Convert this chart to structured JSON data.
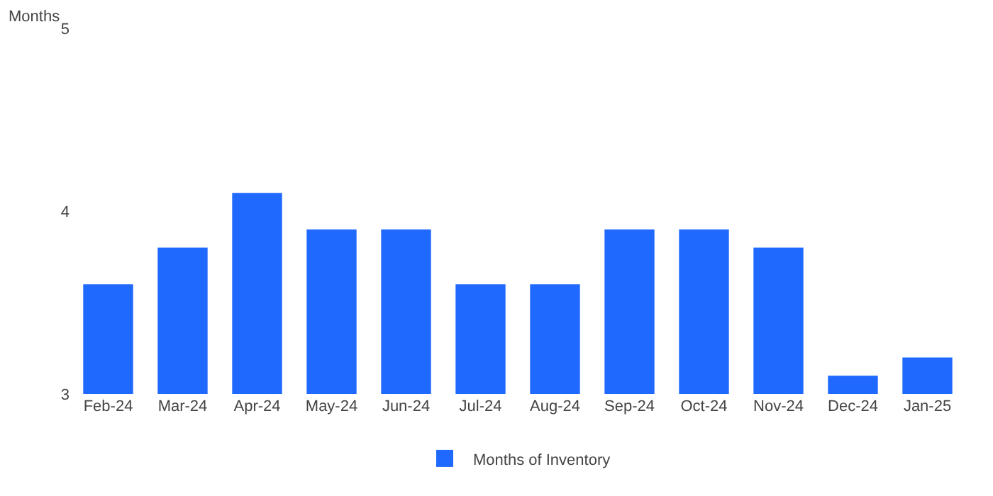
{
  "chart_data": {
    "type": "bar",
    "ylabel": "Months",
    "categories": [
      "Feb-24",
      "Mar-24",
      "Apr-24",
      "May-24",
      "Jun-24",
      "Jul-24",
      "Aug-24",
      "Sep-24",
      "Oct-24",
      "Nov-24",
      "Dec-24",
      "Jan-25"
    ],
    "series": [
      {
        "name": "Months of Inventory",
        "color": "#1f69ff",
        "values": [
          3.6,
          3.8,
          4.1,
          3.9,
          3.9,
          3.6,
          3.6,
          3.9,
          3.9,
          3.8,
          3.1,
          3.2
        ]
      }
    ],
    "ylim": [
      3,
      5
    ],
    "yticks": [
      3,
      4,
      5
    ],
    "legend": "bottom"
  }
}
